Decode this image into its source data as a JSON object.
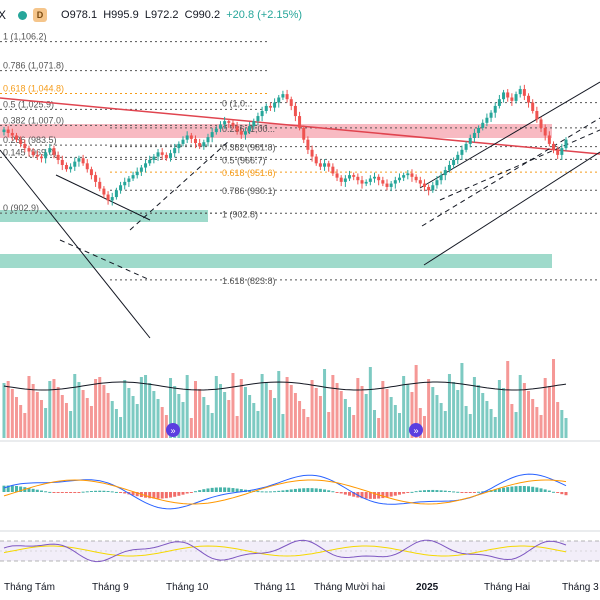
{
  "legend": {
    "symbol_tail": "X",
    "status_color": "#26a69a",
    "badge_letter": "D",
    "open": "O978.1",
    "high": "H995.9",
    "low": "L972.2",
    "close": "C990.2",
    "change": "+20.8 (+2.15%)"
  },
  "fib_levels": [
    {
      "label": "1 (1,106.2)",
      "value": 1106.2
    },
    {
      "label": "0.786 (1,071.8)",
      "value": 1071.8
    },
    {
      "label": "0.618 (1,044.8)",
      "value": 1044.8
    },
    {
      "label": "0.5 (1,025.9)",
      "value": 1025.9
    },
    {
      "label": "0.382 (1,007.0)",
      "value": 1007.0
    },
    {
      "label": "0.236 (983.5)",
      "value": 983.5
    },
    {
      "label": "0.145 (969.0)",
      "value": 969.0
    },
    {
      "label": "0 (902.9)",
      "value": 902.9
    }
  ],
  "fib_levels_2": [
    {
      "label": "0 (1,0...",
      "value": 1034
    },
    {
      "label": "0.236 (1,00...",
      "value": 1004
    },
    {
      "label": "0.382 (981.8)",
      "value": 981.8
    },
    {
      "label": "0.5 (966.7)",
      "value": 966.7
    },
    {
      "label": "0.618 (951.6)",
      "value": 951.6
    },
    {
      "label": "0.786 (930.1)",
      "value": 930.1
    },
    {
      "label": "1 (902.8)",
      "value": 902.8
    },
    {
      "label": "1.618 (823.8)",
      "value": 823.8
    }
  ],
  "xaxis": [
    "Tháng Tám",
    "Tháng 9",
    "Tháng 10",
    "Tháng 11",
    "Tháng Mười hai",
    "2025",
    "Tháng Hai",
    "Tháng 3"
  ],
  "xaxis_bold": "2025",
  "colors": {
    "up": "#26a69a",
    "down": "#ef5350",
    "trend_red": "#e0444f",
    "zone_red": "#f5a3ad",
    "zone_green": "#7fcdb9",
    "fib_orange": "#f59c1a",
    "macd_blue": "#2962ff",
    "macd_orange": "#ff9800",
    "rsi_purple": "#7e57c2",
    "rsi_yellow": "#f5d800"
  },
  "chart_data": {
    "type": "candlestick",
    "yrange": [
      800,
      1120
    ],
    "closes": [
      1002,
      998,
      995,
      990,
      985,
      980,
      976,
      972,
      970,
      968,
      975,
      980,
      972,
      966,
      960,
      955,
      958,
      964,
      968,
      962,
      955,
      948,
      940,
      932,
      925,
      918,
      922,
      930,
      936,
      940,
      944,
      948,
      952,
      957,
      962,
      966,
      970,
      975,
      972,
      968,
      974,
      980,
      985,
      990,
      995,
      991,
      986,
      982,
      987,
      993,
      999,
      1003,
      1008,
      1012,
      1010,
      1006,
      1000,
      996,
      1000,
      1006,
      1012,
      1018,
      1024,
      1030,
      1028,
      1034,
      1040,
      1044,
      1038,
      1030,
      1018,
      1004,
      990,
      978,
      970,
      962,
      958,
      962,
      958,
      950,
      945,
      940,
      944,
      948,
      946,
      942,
      938,
      940,
      944,
      946,
      942,
      938,
      934,
      938,
      942,
      945,
      948,
      950,
      946,
      942,
      938,
      934,
      930,
      936,
      942,
      948,
      954,
      960,
      966,
      972,
      978,
      985,
      992,
      998,
      1004,
      1010,
      1016,
      1022,
      1030,
      1038,
      1046,
      1040,
      1036,
      1044,
      1050,
      1042,
      1034,
      1024,
      1014,
      1004,
      995,
      985,
      978,
      972,
      980,
      990
    ]
  }
}
